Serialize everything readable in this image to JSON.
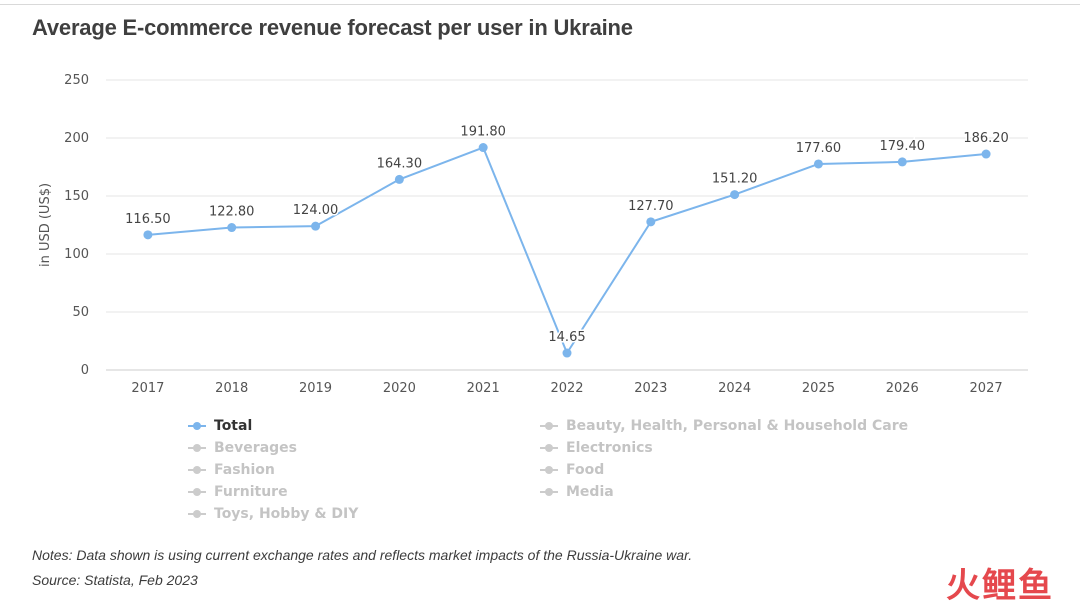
{
  "title": "Average E-commerce revenue forecast per user in Ukraine",
  "chart_data": {
    "type": "line",
    "title": "Average E-commerce revenue forecast per user in Ukraine",
    "xlabel": "",
    "ylabel": "in USD (US$)",
    "ylim": [
      0,
      250
    ],
    "yticks": [
      0,
      50,
      100,
      150,
      200,
      250
    ],
    "grid": true,
    "categories": [
      "2017",
      "2018",
      "2019",
      "2020",
      "2021",
      "2022",
      "2023",
      "2024",
      "2025",
      "2026",
      "2027"
    ],
    "series": [
      {
        "name": "Total",
        "color": "#7cb5ec",
        "values": [
          116.5,
          122.8,
          124.0,
          164.3,
          191.8,
          14.65,
          127.7,
          151.2,
          177.6,
          179.4,
          186.2
        ],
        "labels": [
          "116.50",
          "122.80",
          "124.00",
          "164.30",
          "191.80",
          "14.65",
          "127.70",
          "151.20",
          "177.60",
          "179.40",
          "186.20"
        ]
      }
    ],
    "legend_placement": "bottom"
  },
  "legend": {
    "items": [
      {
        "label": "Total",
        "active": true
      },
      {
        "label": "Beverages",
        "active": false
      },
      {
        "label": "Fashion",
        "active": false
      },
      {
        "label": "Furniture",
        "active": false
      },
      {
        "label": "Toys, Hobby & DIY",
        "active": false
      },
      {
        "label": "Beauty, Health, Personal & Household Care",
        "active": false
      },
      {
        "label": "Electronics",
        "active": false
      },
      {
        "label": "Food",
        "active": false
      },
      {
        "label": "Media",
        "active": false
      }
    ]
  },
  "notes": {
    "text": "Notes: Data shown is using current exchange rates and reflects market impacts of the Russia-Ukraine war.",
    "source": "Source: Statista, Feb 2023"
  },
  "watermark": "火鲤鱼"
}
